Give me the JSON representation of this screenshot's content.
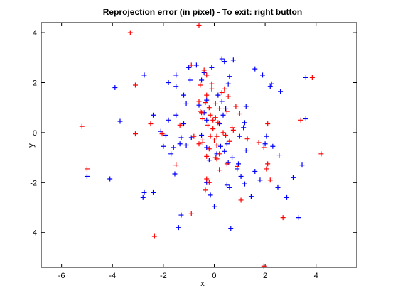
{
  "chart_data": {
    "type": "scatter",
    "title": "Reprojection error (in pixel) - To exit: right button",
    "xlabel": "x",
    "ylabel": "y",
    "xlim": [
      -6.8,
      5.6
    ],
    "ylim": [
      -5.4,
      4.4
    ],
    "xticks": [
      -6,
      -4,
      -2,
      0,
      2,
      4
    ],
    "yticks": [
      -4,
      -2,
      0,
      2,
      4
    ],
    "grid": false,
    "marker": "plus",
    "series": [
      {
        "color": "#0000ff",
        "points": [
          [
            -5.0,
            -1.75
          ],
          [
            -4.1,
            -1.85
          ],
          [
            -3.7,
            0.45
          ],
          [
            -3.9,
            1.8
          ],
          [
            -2.8,
            -2.6
          ],
          [
            -2.75,
            -2.4
          ],
          [
            -2.4,
            -2.4
          ],
          [
            -2.75,
            2.3
          ],
          [
            -2.4,
            0.7
          ],
          [
            -2.1,
            0.05
          ],
          [
            -2.0,
            -0.55
          ],
          [
            -1.9,
            -0.1
          ],
          [
            -1.8,
            0.5
          ],
          [
            -1.7,
            -0.85
          ],
          [
            -1.6,
            -0.6
          ],
          [
            -1.5,
            0.7
          ],
          [
            -1.3,
            -0.2
          ],
          [
            -1.2,
            0.35
          ],
          [
            -1.1,
            -0.5
          ],
          [
            -1.8,
            2.0
          ],
          [
            -1.5,
            1.85
          ],
          [
            -1.5,
            2.3
          ],
          [
            -1.2,
            1.5
          ],
          [
            -1.1,
            1.15
          ],
          [
            -1.0,
            2.6
          ],
          [
            -0.95,
            2.1
          ],
          [
            -0.7,
            2.7
          ],
          [
            -0.5,
            2.1
          ],
          [
            -0.4,
            2.4
          ],
          [
            -0.1,
            2.6
          ],
          [
            -0.3,
            1.3
          ],
          [
            -0.6,
            1.1
          ],
          [
            -0.4,
            0.8
          ],
          [
            -0.3,
            0.5
          ],
          [
            -0.5,
            -0.1
          ],
          [
            -0.3,
            -0.6
          ],
          [
            -0.2,
            -1.1
          ],
          [
            -0.3,
            -2.0
          ],
          [
            -0.15,
            -2.5
          ],
          [
            0.0,
            -2.95
          ],
          [
            0.1,
            -0.85
          ],
          [
            0.25,
            -0.55
          ],
          [
            0.4,
            -0.75
          ],
          [
            0.5,
            -0.45
          ],
          [
            0.2,
            0.35
          ],
          [
            0.35,
            0.7
          ],
          [
            0.45,
            0.95
          ],
          [
            0.55,
            -1.2
          ],
          [
            0.7,
            -1.0
          ],
          [
            0.95,
            -1.25
          ],
          [
            0.55,
            1.95
          ],
          [
            0.6,
            2.25
          ],
          [
            0.75,
            2.9
          ],
          [
            0.3,
            2.95
          ],
          [
            0.4,
            2.85
          ],
          [
            0.15,
            1.5
          ],
          [
            0.3,
            1.25
          ],
          [
            1.0,
            -0.15
          ],
          [
            1.15,
            0.2
          ],
          [
            1.2,
            0.4
          ],
          [
            1.25,
            -0.7
          ],
          [
            0.9,
            -1.45
          ],
          [
            1.05,
            -1.75
          ],
          [
            1.2,
            -2.05
          ],
          [
            1.45,
            -2.55
          ],
          [
            0.5,
            -2.1
          ],
          [
            0.6,
            -2.2
          ],
          [
            0.65,
            -3.85
          ],
          [
            1.25,
            1.05
          ],
          [
            1.6,
            -1.55
          ],
          [
            1.8,
            -1.9
          ],
          [
            2.0,
            -0.45
          ],
          [
            2.05,
            -0.15
          ],
          [
            2.3,
            -0.55
          ],
          [
            2.2,
            1.85
          ],
          [
            2.25,
            1.95
          ],
          [
            2.6,
            1.65
          ],
          [
            1.9,
            2.3
          ],
          [
            1.6,
            2.55
          ],
          [
            2.55,
            -0.9
          ],
          [
            2.5,
            -2.2
          ],
          [
            2.85,
            -2.6
          ],
          [
            3.1,
            -1.8
          ],
          [
            3.3,
            -3.4
          ],
          [
            3.45,
            -1.3
          ],
          [
            3.6,
            0.55
          ],
          [
            3.6,
            2.2
          ],
          [
            -1.3,
            -3.3
          ],
          [
            -1.4,
            -3.8
          ],
          [
            -1.55,
            -1.65
          ],
          [
            -1.35,
            -0.45
          ],
          [
            -0.9,
            -0.2
          ]
        ]
      },
      {
        "color": "#ff0000",
        "points": [
          [
            -5.2,
            0.25
          ],
          [
            -5.0,
            -1.45
          ],
          [
            -3.3,
            4.0
          ],
          [
            -3.1,
            1.9
          ],
          [
            -3.1,
            -0.05
          ],
          [
            -2.5,
            0.35
          ],
          [
            -2.35,
            -4.15
          ],
          [
            -2.05,
            -0.05
          ],
          [
            -1.5,
            -1.3
          ],
          [
            -1.35,
            0.3
          ],
          [
            -0.9,
            2.7
          ],
          [
            -0.8,
            -0.15
          ],
          [
            -0.9,
            -3.25
          ],
          [
            -0.6,
            4.3
          ],
          [
            -0.55,
            1.9
          ],
          [
            -0.6,
            1.25
          ],
          [
            -0.55,
            0.85
          ],
          [
            -0.5,
            0.8
          ],
          [
            -0.45,
            0.55
          ],
          [
            -0.45,
            -0.3
          ],
          [
            -0.45,
            -0.4
          ],
          [
            -0.35,
            1.2
          ],
          [
            -0.4,
            2.5
          ],
          [
            -0.3,
            2.3
          ],
          [
            -0.3,
            1.5
          ],
          [
            -0.25,
            0.3
          ],
          [
            -0.3,
            -0.95
          ],
          [
            -0.3,
            -1.85
          ],
          [
            -0.35,
            -2.3
          ],
          [
            -0.2,
            1.0
          ],
          [
            -0.15,
            0.7
          ],
          [
            -0.15,
            -0.15
          ],
          [
            -0.2,
            -0.65
          ],
          [
            -0.2,
            -2.0
          ],
          [
            -0.1,
            1.95
          ],
          [
            -0.1,
            1.75
          ],
          [
            -0.05,
            0.5
          ],
          [
            -0.05,
            0.15
          ],
          [
            0.0,
            -0.3
          ],
          [
            0.05,
            1.15
          ],
          [
            0.05,
            0.6
          ],
          [
            0.05,
            -1.0
          ],
          [
            0.1,
            -0.15
          ],
          [
            0.1,
            -0.5
          ],
          [
            0.1,
            -1.05
          ],
          [
            0.15,
            0.4
          ],
          [
            0.2,
            0.95
          ],
          [
            0.2,
            -0.85
          ],
          [
            0.2,
            -1.5
          ],
          [
            0.3,
            1.6
          ],
          [
            0.35,
            0.0
          ],
          [
            0.4,
            1.75
          ],
          [
            0.45,
            -0.1
          ],
          [
            0.5,
            0.85
          ],
          [
            0.5,
            -1.25
          ],
          [
            0.55,
            1.45
          ],
          [
            0.6,
            -0.35
          ],
          [
            0.7,
            0.2
          ],
          [
            0.75,
            0.1
          ],
          [
            0.85,
            1.05
          ],
          [
            0.9,
            -1.35
          ],
          [
            1.0,
            0.75
          ],
          [
            1.05,
            -2.7
          ],
          [
            1.3,
            -0.25
          ],
          [
            1.75,
            -0.4
          ],
          [
            1.95,
            -0.6
          ],
          [
            2.1,
            0.35
          ],
          [
            2.05,
            -1.45
          ],
          [
            2.1,
            -1.25
          ],
          [
            2.2,
            -1.9
          ],
          [
            2.7,
            -3.4
          ],
          [
            3.4,
            0.5
          ],
          [
            3.85,
            2.2
          ],
          [
            4.2,
            -0.85
          ],
          [
            1.95,
            -5.35
          ],
          [
            -0.6,
            -0.45
          ]
        ]
      }
    ]
  }
}
